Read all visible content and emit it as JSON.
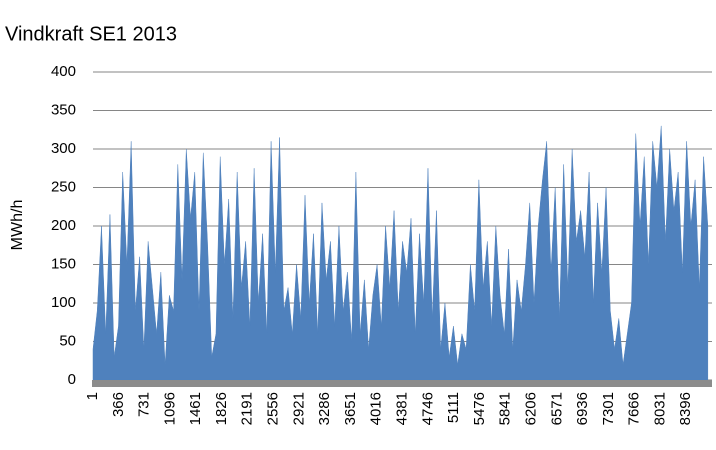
{
  "chart_data": {
    "type": "area",
    "title": "Vindkraft SE1 2013",
    "y_label": "MWh/h",
    "color": "#4f81bd",
    "grid": true,
    "xlim": [
      1,
      8760
    ],
    "ylim": [
      0,
      400
    ],
    "xticks": [
      1,
      366,
      731,
      1096,
      1461,
      1826,
      2191,
      2556,
      2921,
      3286,
      3651,
      4016,
      4381,
      4746,
      5111,
      5476,
      5841,
      6206,
      6571,
      6936,
      7301,
      7666,
      8031,
      8396
    ],
    "yticks": [
      0,
      50,
      100,
      150,
      200,
      250,
      300,
      350,
      400
    ],
    "x": [
      1,
      61,
      121,
      181,
      241,
      301,
      361,
      421,
      481,
      541,
      601,
      661,
      721,
      781,
      841,
      901,
      961,
      1021,
      1081,
      1141,
      1201,
      1261,
      1321,
      1381,
      1441,
      1501,
      1561,
      1621,
      1681,
      1741,
      1801,
      1861,
      1921,
      1981,
      2041,
      2101,
      2161,
      2221,
      2281,
      2341,
      2401,
      2461,
      2521,
      2581,
      2641,
      2701,
      2761,
      2821,
      2881,
      2941,
      3001,
      3061,
      3121,
      3181,
      3241,
      3301,
      3361,
      3421,
      3481,
      3541,
      3601,
      3661,
      3721,
      3781,
      3841,
      3901,
      3961,
      4021,
      4081,
      4141,
      4201,
      4261,
      4321,
      4381,
      4441,
      4501,
      4561,
      4621,
      4681,
      4741,
      4801,
      4861,
      4921,
      4981,
      5041,
      5101,
      5161,
      5221,
      5281,
      5341,
      5401,
      5461,
      5521,
      5581,
      5641,
      5701,
      5761,
      5821,
      5881,
      5941,
      6001,
      6061,
      6121,
      6181,
      6241,
      6301,
      6361,
      6421,
      6481,
      6541,
      6601,
      6661,
      6721,
      6781,
      6841,
      6901,
      6961,
      7021,
      7081,
      7141,
      7201,
      7261,
      7321,
      7381,
      7441,
      7501,
      7561,
      7621,
      7681,
      7741,
      7801,
      7861,
      7921,
      7981,
      8041,
      8101,
      8161,
      8221,
      8281,
      8341,
      8401,
      8461,
      8521,
      8581,
      8641,
      8701
    ],
    "values": [
      40,
      90,
      200,
      60,
      215,
      30,
      70,
      270,
      150,
      310,
      90,
      160,
      40,
      180,
      120,
      60,
      140,
      20,
      110,
      90,
      280,
      130,
      300,
      210,
      270,
      90,
      295,
      180,
      30,
      60,
      290,
      150,
      235,
      80,
      270,
      120,
      180,
      70,
      275,
      100,
      190,
      60,
      310,
      140,
      315,
      90,
      120,
      60,
      150,
      80,
      240,
      100,
      190,
      60,
      230,
      130,
      180,
      70,
      200,
      90,
      140,
      50,
      270,
      60,
      130,
      40,
      110,
      150,
      70,
      200,
      120,
      220,
      90,
      180,
      140,
      210,
      60,
      190,
      100,
      275,
      80,
      220,
      40,
      100,
      30,
      70,
      20,
      60,
      40,
      150,
      90,
      260,
      120,
      180,
      70,
      200,
      110,
      60,
      170,
      40,
      130,
      90,
      150,
      230,
      100,
      200,
      260,
      310,
      140,
      250,
      80,
      280,
      120,
      300,
      180,
      220,
      160,
      270,
      100,
      230,
      140,
      250,
      90,
      40,
      80,
      20,
      60,
      100,
      320,
      200,
      290,
      150,
      310,
      250,
      330,
      180,
      300,
      220,
      270,
      140,
      310,
      200,
      260,
      120,
      290,
      200
    ]
  }
}
